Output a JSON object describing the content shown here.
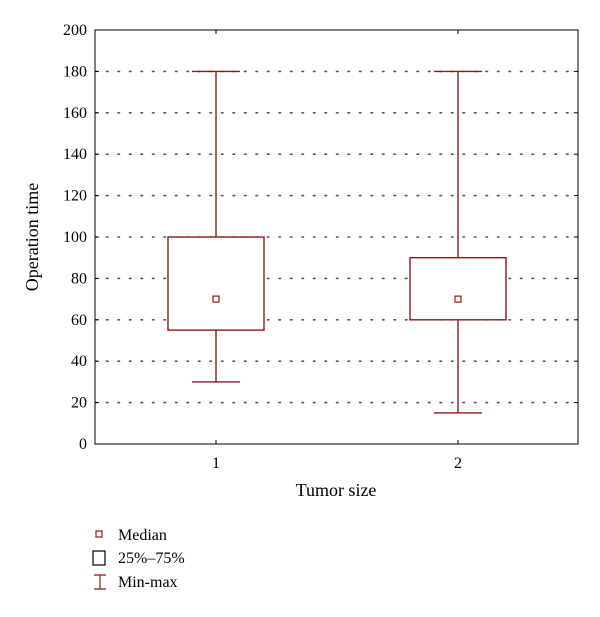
{
  "colors": {
    "box": "#8b1a1a",
    "grid": "#555555",
    "axis": "#000000"
  },
  "chart_data": {
    "type": "boxplot",
    "xlabel": "Tumor size",
    "ylabel": "Operation time",
    "ylim": [
      0,
      200
    ],
    "y_ticks": [
      0,
      20,
      40,
      60,
      80,
      100,
      120,
      140,
      160,
      180,
      200
    ],
    "grid": "dotted horizontal",
    "categories": [
      "1",
      "2"
    ],
    "boxes": [
      {
        "category": "1",
        "min": 30,
        "q1": 55,
        "median": 70,
        "q3": 100,
        "max": 180
      },
      {
        "category": "2",
        "min": 15,
        "q1": 60,
        "median": 70,
        "q3": 90,
        "max": 180
      }
    ],
    "legend": {
      "position": "bottom-left",
      "items": [
        {
          "symbol": "median",
          "label": "Median"
        },
        {
          "symbol": "box",
          "label": "25%–75%"
        },
        {
          "symbol": "whisker",
          "label": "Min-max"
        }
      ]
    }
  }
}
